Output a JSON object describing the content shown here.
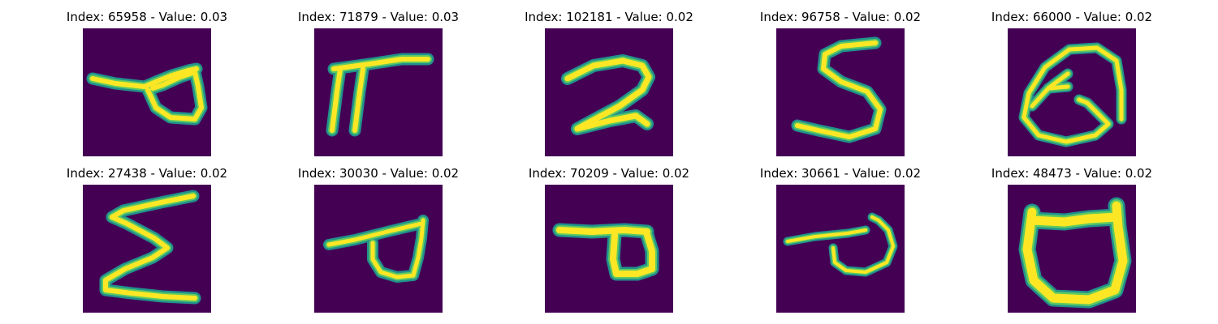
{
  "colormap": {
    "background": "#440154",
    "edge": "#21918c",
    "mid": "#5ec962",
    "core": "#fde725"
  },
  "panels": [
    {
      "title": "Index: 65958 - Value: 0.03"
    },
    {
      "title": "Index: 71879 - Value: 0.03"
    },
    {
      "title": "Index: 102181 - Value: 0.02"
    },
    {
      "title": "Index: 96758 - Value: 0.02"
    },
    {
      "title": "Index: 66000 - Value: 0.02"
    },
    {
      "title": "Index: 27438 - Value: 0.02"
    },
    {
      "title": "Index: 30030 - Value: 0.02"
    },
    {
      "title": "Index: 70209 - Value: 0.02"
    },
    {
      "title": "Index: 30661 - Value: 0.02"
    },
    {
      "title": "Index: 48473 - Value: 0.02"
    }
  ]
}
